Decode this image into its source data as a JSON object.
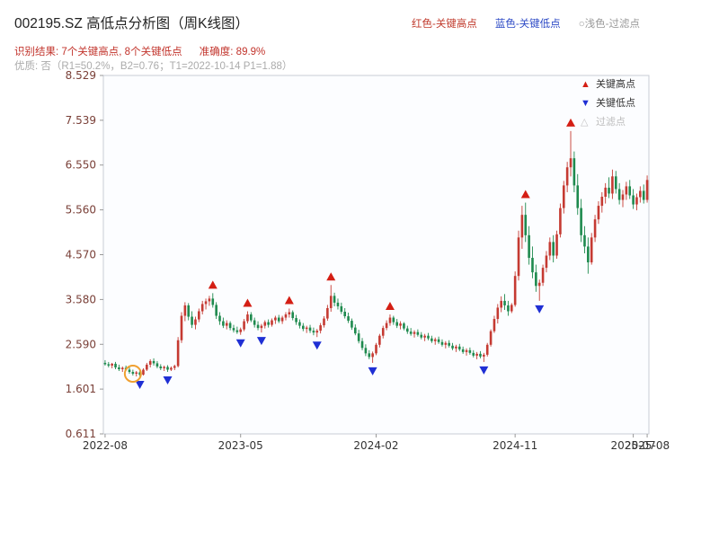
{
  "header": {
    "title": "002195.SZ 高低点分析图（周K线图）",
    "legend_inline": {
      "high": "红色-关键高点",
      "low": "蓝色-关键低点",
      "filter": "○浅色-过滤点"
    },
    "result_part1": "识别结果: 7个关键高点, 8个关键低点",
    "result_part2": "准确度: 89.9%",
    "quality_line": "优质: 否（R1=50.2%，B2=0.76；T1=2022-10-14 P1=1.88）"
  },
  "legend_box": {
    "high": "关键高点",
    "low": "关键低点",
    "filter": "过滤点"
  },
  "chart_data": {
    "type": "candlestick",
    "symbol": "002195.SZ",
    "title": "002195.SZ 高低点分析图（周K线图）",
    "period": "weekly",
    "recognition": {
      "key_high_count": 7,
      "key_low_count": 8,
      "accuracy_pct": 89.9
    },
    "quality": {
      "premium": "否",
      "R1": "50.2%",
      "B2": "0.76",
      "T1": "2022-10-14",
      "P1": "1.88"
    },
    "ylim": [
      0.611,
      8.529
    ],
    "y_ticks": [
      "8.529",
      "7.539",
      "6.550",
      "5.560",
      "4.570",
      "3.580",
      "2.590",
      "1.601",
      "0.611"
    ],
    "x_ticks": [
      {
        "label": "2022-08",
        "week": 0
      },
      {
        "label": "2023-05",
        "week": 39
      },
      {
        "label": "2024-02",
        "week": 78
      },
      {
        "label": "2024-11",
        "week": 118
      },
      {
        "label": "2025-07",
        "week": 152
      },
      {
        "label": "2025-08",
        "week": 156
      }
    ],
    "colors": {
      "up": "#c53a32",
      "down": "#1e8a4e",
      "key_high": "#d41e14",
      "key_low": "#1f2fd4",
      "filter_circle": "#f0a030"
    },
    "candles_ohlc": [
      [
        2.18,
        2.24,
        2.12,
        2.15
      ],
      [
        2.15,
        2.2,
        2.08,
        2.12
      ],
      [
        2.12,
        2.18,
        2.06,
        2.16
      ],
      [
        2.16,
        2.2,
        2.04,
        2.08
      ],
      [
        2.08,
        2.14,
        2.0,
        2.04
      ],
      [
        2.04,
        2.1,
        1.98,
        2.07
      ],
      [
        2.07,
        2.12,
        2.0,
        2.03
      ],
      [
        2.03,
        2.08,
        1.94,
        1.98
      ],
      [
        1.98,
        2.03,
        1.9,
        1.94
      ],
      [
        1.94,
        2.0,
        1.88,
        1.97
      ],
      [
        1.97,
        2.01,
        1.88,
        1.92
      ],
      [
        1.92,
        2.06,
        1.9,
        2.03
      ],
      [
        2.03,
        2.18,
        2.0,
        2.14
      ],
      [
        2.14,
        2.26,
        2.08,
        2.22
      ],
      [
        2.22,
        2.28,
        2.12,
        2.17
      ],
      [
        2.17,
        2.22,
        2.06,
        2.1
      ],
      [
        2.1,
        2.15,
        2.02,
        2.06
      ],
      [
        2.06,
        2.12,
        2.0,
        2.09
      ],
      [
        2.09,
        2.13,
        1.98,
        2.03
      ],
      [
        2.03,
        2.1,
        2.0,
        2.07
      ],
      [
        2.07,
        2.14,
        2.02,
        2.11
      ],
      [
        2.11,
        2.75,
        2.08,
        2.68
      ],
      [
        2.68,
        3.3,
        2.62,
        3.22
      ],
      [
        3.22,
        3.52,
        3.1,
        3.45
      ],
      [
        3.45,
        3.5,
        3.12,
        3.2
      ],
      [
        3.2,
        3.32,
        2.95,
        3.02
      ],
      [
        3.02,
        3.2,
        2.92,
        3.14
      ],
      [
        3.14,
        3.38,
        3.08,
        3.32
      ],
      [
        3.32,
        3.55,
        3.25,
        3.48
      ],
      [
        3.48,
        3.6,
        3.36,
        3.54
      ],
      [
        3.54,
        3.66,
        3.44,
        3.6
      ],
      [
        3.6,
        3.72,
        3.4,
        3.46
      ],
      [
        3.46,
        3.52,
        3.15,
        3.22
      ],
      [
        3.22,
        3.3,
        3.02,
        3.1
      ],
      [
        3.1,
        3.18,
        2.95,
        3.0
      ],
      [
        3.0,
        3.12,
        2.92,
        3.06
      ],
      [
        3.06,
        3.1,
        2.9,
        2.95
      ],
      [
        2.95,
        3.02,
        2.85,
        2.9
      ],
      [
        2.9,
        2.98,
        2.82,
        2.86
      ],
      [
        2.86,
        2.96,
        2.8,
        2.92
      ],
      [
        2.92,
        3.15,
        2.88,
        3.1
      ],
      [
        3.1,
        3.32,
        3.05,
        3.25
      ],
      [
        3.25,
        3.3,
        3.08,
        3.12
      ],
      [
        3.12,
        3.18,
        2.96,
        3.02
      ],
      [
        3.02,
        3.1,
        2.9,
        2.95
      ],
      [
        2.95,
        3.04,
        2.85,
        3.0
      ],
      [
        3.0,
        3.12,
        2.94,
        3.08
      ],
      [
        3.08,
        3.14,
        2.96,
        3.02
      ],
      [
        3.02,
        3.16,
        2.98,
        3.12
      ],
      [
        3.12,
        3.22,
        3.04,
        3.18
      ],
      [
        3.18,
        3.24,
        3.06,
        3.1
      ],
      [
        3.1,
        3.22,
        3.04,
        3.18
      ],
      [
        3.18,
        3.3,
        3.12,
        3.25
      ],
      [
        3.25,
        3.38,
        3.18,
        3.3
      ],
      [
        3.3,
        3.34,
        3.12,
        3.17
      ],
      [
        3.17,
        3.24,
        3.02,
        3.08
      ],
      [
        3.08,
        3.14,
        2.94,
        3.0
      ],
      [
        3.0,
        3.06,
        2.88,
        2.93
      ],
      [
        2.93,
        3.0,
        2.84,
        2.96
      ],
      [
        2.96,
        3.02,
        2.84,
        2.89
      ],
      [
        2.89,
        2.96,
        2.79,
        2.85
      ],
      [
        2.85,
        2.93,
        2.75,
        2.89
      ],
      [
        2.89,
        3.06,
        2.83,
        3.01
      ],
      [
        3.01,
        3.21,
        2.96,
        3.16
      ],
      [
        3.16,
        3.46,
        3.11,
        3.39
      ],
      [
        3.39,
        3.9,
        3.31,
        3.66
      ],
      [
        3.66,
        3.73,
        3.43,
        3.51
      ],
      [
        3.51,
        3.6,
        3.36,
        3.43
      ],
      [
        3.43,
        3.51,
        3.26,
        3.31
      ],
      [
        3.31,
        3.39,
        3.16,
        3.21
      ],
      [
        3.21,
        3.29,
        3.06,
        3.11
      ],
      [
        3.11,
        3.16,
        2.91,
        2.96
      ],
      [
        2.96,
        3.03,
        2.79,
        2.83
      ],
      [
        2.83,
        2.91,
        2.61,
        2.66
      ],
      [
        2.66,
        2.73,
        2.46,
        2.51
      ],
      [
        2.51,
        2.59,
        2.33,
        2.39
      ],
      [
        2.39,
        2.46,
        2.26,
        2.31
      ],
      [
        2.31,
        2.43,
        2.18,
        2.39
      ],
      [
        2.39,
        2.62,
        2.35,
        2.58
      ],
      [
        2.58,
        2.82,
        2.52,
        2.78
      ],
      [
        2.78,
        3.0,
        2.72,
        2.95
      ],
      [
        2.95,
        3.12,
        2.9,
        3.06
      ],
      [
        3.06,
        3.25,
        3.0,
        3.18
      ],
      [
        3.18,
        3.22,
        3.02,
        3.08
      ],
      [
        3.08,
        3.15,
        2.95,
        3.0
      ],
      [
        3.0,
        3.1,
        2.92,
        3.05
      ],
      [
        3.05,
        3.08,
        2.9,
        2.94
      ],
      [
        2.94,
        3.0,
        2.82,
        2.87
      ],
      [
        2.87,
        2.95,
        2.78,
        2.82
      ],
      [
        2.82,
        2.9,
        2.74,
        2.86
      ],
      [
        2.86,
        2.92,
        2.76,
        2.8
      ],
      [
        2.8,
        2.86,
        2.7,
        2.74
      ],
      [
        2.74,
        2.82,
        2.66,
        2.78
      ],
      [
        2.78,
        2.84,
        2.68,
        2.72
      ],
      [
        2.72,
        2.78,
        2.62,
        2.66
      ],
      [
        2.66,
        2.74,
        2.58,
        2.7
      ],
      [
        2.7,
        2.76,
        2.6,
        2.64
      ],
      [
        2.64,
        2.7,
        2.54,
        2.58
      ],
      [
        2.58,
        2.66,
        2.5,
        2.62
      ],
      [
        2.62,
        2.68,
        2.52,
        2.56
      ],
      [
        2.56,
        2.62,
        2.46,
        2.5
      ],
      [
        2.5,
        2.58,
        2.42,
        2.54
      ],
      [
        2.54,
        2.6,
        2.44,
        2.48
      ],
      [
        2.48,
        2.54,
        2.38,
        2.42
      ],
      [
        2.42,
        2.5,
        2.34,
        2.46
      ],
      [
        2.46,
        2.52,
        2.36,
        2.4
      ],
      [
        2.4,
        2.46,
        2.3,
        2.34
      ],
      [
        2.34,
        2.42,
        2.26,
        2.38
      ],
      [
        2.38,
        2.44,
        2.28,
        2.32
      ],
      [
        2.32,
        2.4,
        2.2,
        2.36
      ],
      [
        2.36,
        2.62,
        2.32,
        2.58
      ],
      [
        2.58,
        2.92,
        2.54,
        2.88
      ],
      [
        2.88,
        3.22,
        2.84,
        3.15
      ],
      [
        3.15,
        3.48,
        3.05,
        3.4
      ],
      [
        3.4,
        3.65,
        3.3,
        3.55
      ],
      [
        3.55,
        3.7,
        3.35,
        3.45
      ],
      [
        3.45,
        3.55,
        3.22,
        3.32
      ],
      [
        3.32,
        3.5,
        3.28,
        3.46
      ],
      [
        3.46,
        4.2,
        3.42,
        4.1
      ],
      [
        4.1,
        5.1,
        4.0,
        4.95
      ],
      [
        4.95,
        5.65,
        4.7,
        5.45
      ],
      [
        5.45,
        5.72,
        4.85,
        5.0
      ],
      [
        5.0,
        5.2,
        4.35,
        4.5
      ],
      [
        4.5,
        4.75,
        4.05,
        4.18
      ],
      [
        4.18,
        4.35,
        3.75,
        3.88
      ],
      [
        3.88,
        4.02,
        3.55,
        3.95
      ],
      [
        3.95,
        4.35,
        3.88,
        4.28
      ],
      [
        4.28,
        4.65,
        4.18,
        4.55
      ],
      [
        4.55,
        4.95,
        4.45,
        4.85
      ],
      [
        4.85,
        5.0,
        4.4,
        4.55
      ],
      [
        4.55,
        5.1,
        4.48,
        5.02
      ],
      [
        5.02,
        5.7,
        4.95,
        5.6
      ],
      [
        5.6,
        6.2,
        5.48,
        6.1
      ],
      [
        6.1,
        6.62,
        5.95,
        6.5
      ],
      [
        6.5,
        7.3,
        6.3,
        6.7
      ],
      [
        6.7,
        6.85,
        5.95,
        6.1
      ],
      [
        6.1,
        6.35,
        5.45,
        5.6
      ],
      [
        5.6,
        5.8,
        4.85,
        5.0
      ],
      [
        5.0,
        5.2,
        4.6,
        4.75
      ],
      [
        4.75,
        4.95,
        4.15,
        4.4
      ],
      [
        4.4,
        5.05,
        4.35,
        4.95
      ],
      [
        4.95,
        5.45,
        4.85,
        5.35
      ],
      [
        5.35,
        5.75,
        5.25,
        5.65
      ],
      [
        5.65,
        5.95,
        5.5,
        5.85
      ],
      [
        5.85,
        6.15,
        5.7,
        6.05
      ],
      [
        6.05,
        6.28,
        5.82,
        5.92
      ],
      [
        5.92,
        6.45,
        5.8,
        6.3
      ],
      [
        6.3,
        6.42,
        5.92,
        6.02
      ],
      [
        6.02,
        6.15,
        5.68,
        5.78
      ],
      [
        5.78,
        6.0,
        5.62,
        5.9
      ],
      [
        5.9,
        6.18,
        5.78,
        6.08
      ],
      [
        6.08,
        6.22,
        5.8,
        5.88
      ],
      [
        5.88,
        6.02,
        5.58,
        5.68
      ],
      [
        5.68,
        5.92,
        5.55,
        5.84
      ],
      [
        5.84,
        6.08,
        5.72,
        5.98
      ],
      [
        5.98,
        6.12,
        5.7,
        5.78
      ],
      [
        5.78,
        6.32,
        5.72,
        6.22
      ]
    ],
    "key_highs": [
      {
        "week": 31,
        "price": 3.72
      },
      {
        "week": 41,
        "price": 3.32
      },
      {
        "week": 53,
        "price": 3.38
      },
      {
        "week": 65,
        "price": 3.9
      },
      {
        "week": 82,
        "price": 3.25
      },
      {
        "week": 121,
        "price": 5.72
      },
      {
        "week": 134,
        "price": 7.3
      }
    ],
    "key_lows": [
      {
        "week": 10,
        "price": 1.88
      },
      {
        "week": 18,
        "price": 1.98
      },
      {
        "week": 39,
        "price": 2.8
      },
      {
        "week": 45,
        "price": 2.85
      },
      {
        "week": 61,
        "price": 2.75
      },
      {
        "week": 77,
        "price": 2.18
      },
      {
        "week": 109,
        "price": 2.2
      },
      {
        "week": 125,
        "price": 3.55
      }
    ],
    "filter_circle": {
      "week": 8,
      "price": 1.94
    }
  }
}
